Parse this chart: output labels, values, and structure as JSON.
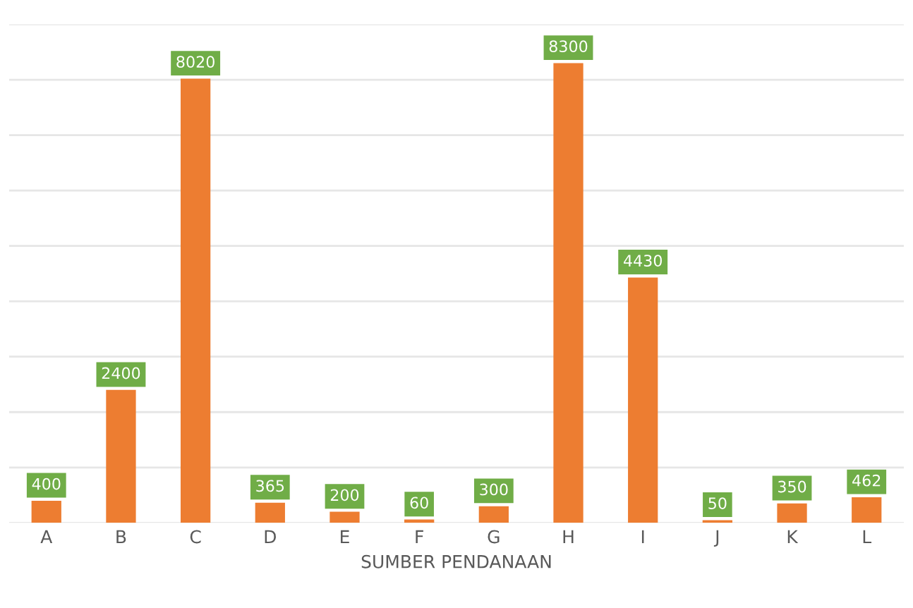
{
  "chart_data": {
    "type": "bar",
    "xlabel": "SUMBER PENDANAAN",
    "categories": [
      "A",
      "B",
      "C",
      "D",
      "E",
      "F",
      "G",
      "H",
      "I",
      "J",
      "K",
      "L"
    ],
    "values": [
      400,
      2400,
      8020,
      365,
      200,
      60,
      300,
      8300,
      4430,
      50,
      350,
      462
    ],
    "color": "#ed7d31",
    "data_labels": true,
    "ylim": [
      0,
      9000
    ],
    "yticks": [
      {
        "value": 0,
        "label": null
      },
      {
        "value": 1000,
        "label": null
      },
      {
        "value": 2000,
        "label": null
      },
      {
        "value": 3000,
        "label": null
      },
      {
        "value": 4000,
        "label": null
      },
      {
        "value": 5000,
        "label": null
      },
      {
        "value": 6000,
        "label": null
      },
      {
        "value": 7000,
        "label": null
      },
      {
        "value": 8000,
        "label": null
      },
      {
        "value": 9000,
        "label": null
      }
    ],
    "grid": "y",
    "tick_labels": "x"
  }
}
